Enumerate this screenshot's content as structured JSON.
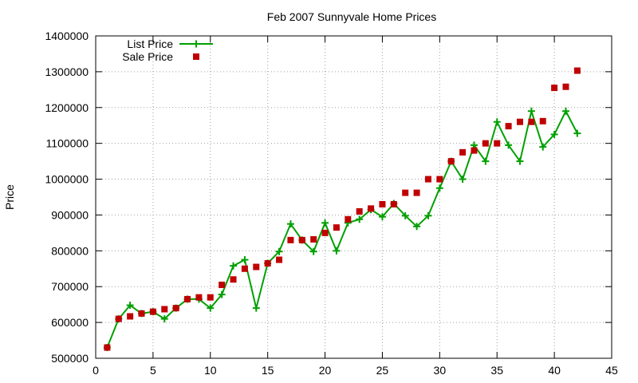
{
  "chart_data": {
    "type": "line",
    "title": "Feb 2007 Sunnyvale Home Prices",
    "xlabel": "",
    "ylabel": "Price",
    "xlim": [
      0,
      45
    ],
    "ylim": [
      500000,
      1400000
    ],
    "x_ticks": [
      0,
      5,
      10,
      15,
      20,
      25,
      30,
      35,
      40,
      45
    ],
    "y_ticks": [
      500000,
      600000,
      700000,
      800000,
      900000,
      1000000,
      1100000,
      1200000,
      1300000,
      1400000
    ],
    "grid": true,
    "legend_position": "top-left",
    "series": [
      {
        "name": "List Price",
        "style": "line+cross",
        "color": "#00a000",
        "x": [
          1,
          2,
          3,
          4,
          5,
          6,
          7,
          8,
          9,
          10,
          11,
          12,
          13,
          14,
          15,
          16,
          17,
          18,
          19,
          20,
          21,
          22,
          23,
          24,
          25,
          26,
          27,
          28,
          29,
          30,
          31,
          32,
          33,
          34,
          35,
          36,
          37,
          38,
          39,
          40,
          41,
          42
        ],
        "y": [
          530000,
          610000,
          648000,
          625000,
          630000,
          610000,
          640000,
          665000,
          665000,
          640000,
          678000,
          758000,
          775000,
          640000,
          765000,
          798000,
          875000,
          830000,
          798000,
          878000,
          800000,
          878000,
          888000,
          915000,
          895000,
          932000,
          898000,
          868000,
          898000,
          975000,
          1050000,
          1000000,
          1095000,
          1050000,
          1160000,
          1095000,
          1050000,
          1190000,
          1090000,
          1125000,
          1190000,
          1128000
        ]
      },
      {
        "name": "Sale Price",
        "style": "points-square",
        "color": "#c00000",
        "x": [
          1,
          2,
          3,
          4,
          5,
          6,
          7,
          8,
          9,
          10,
          11,
          12,
          13,
          14,
          15,
          16,
          17,
          18,
          19,
          20,
          21,
          22,
          23,
          24,
          25,
          26,
          27,
          28,
          29,
          30,
          31,
          32,
          33,
          34,
          35,
          36,
          37,
          38,
          39,
          40,
          41,
          42
        ],
        "y": [
          530000,
          610000,
          617000,
          625000,
          630000,
          637000,
          640000,
          665000,
          670000,
          670000,
          705000,
          720000,
          750000,
          755000,
          765000,
          775000,
          830000,
          830000,
          832000,
          850000,
          865000,
          888000,
          910000,
          918000,
          930000,
          930000,
          962000,
          962000,
          1000000,
          1000000,
          1050000,
          1075000,
          1080000,
          1100000,
          1100000,
          1148000,
          1160000,
          1160000,
          1162000,
          1255000,
          1258000,
          1303000
        ]
      }
    ]
  }
}
